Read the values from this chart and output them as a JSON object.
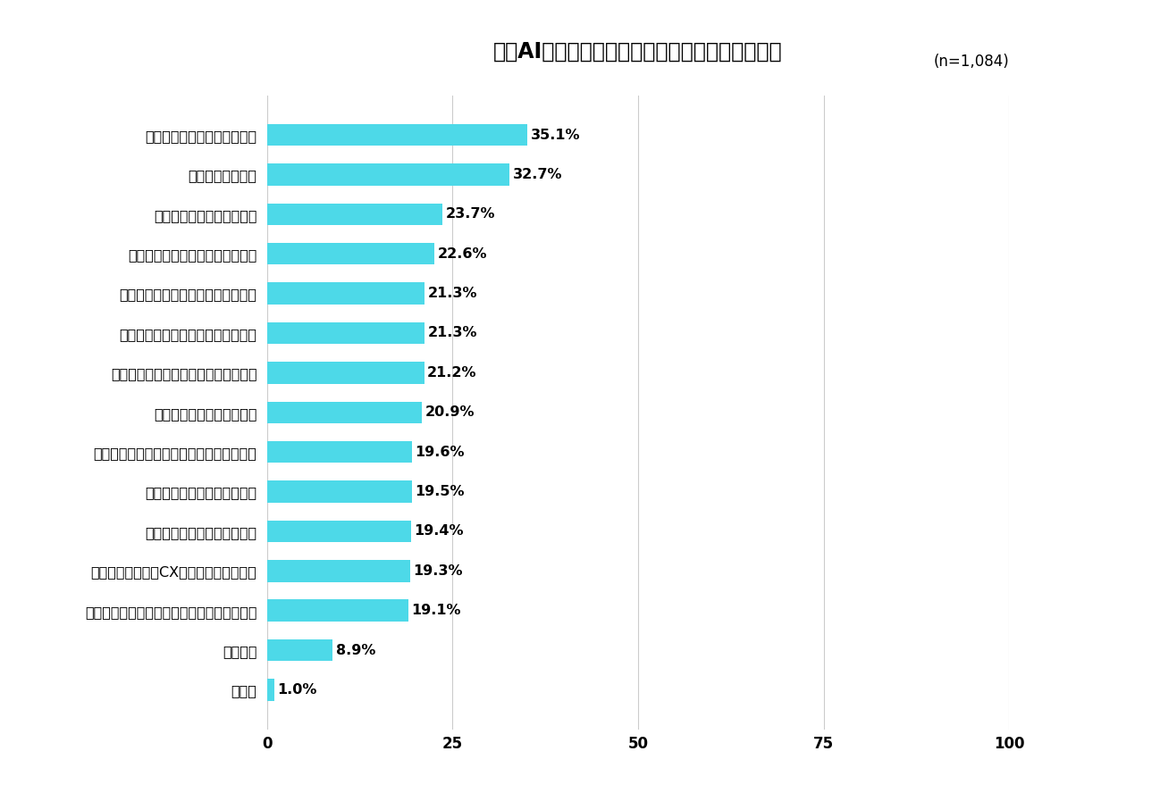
{
  "title": "生成AIの使用経験から得られた成果はなんですか",
  "subtitle": "(n=1,084)",
  "categories": [
    "時間とコストの削減ができた",
    "生産性が上がった",
    "機械翻訳の精度が向上した",
    "データ解析や予測の強化ができた",
    "マーケティング活動の強化ができた",
    "新たなビジネスの創造につながった",
    "顧客のニーズを収集することができた",
    "リスク管理の強化ができた",
    "複数チャネルでの情報提供が可能になった",
    "ブランドイメージが向上した",
    "競合他社との差別化が図れた",
    "顧客対応へ導入しCXの向上につながった",
    "教育・トレーニングに効果的な教材が作れた",
    "特にない",
    "その他"
  ],
  "values": [
    35.1,
    32.7,
    23.7,
    22.6,
    21.3,
    21.3,
    21.2,
    20.9,
    19.6,
    19.5,
    19.4,
    19.3,
    19.1,
    8.9,
    1.0
  ],
  "bar_color": "#4DD9E8",
  "background_color": "#ffffff",
  "xlim": [
    0,
    100
  ],
  "xticks": [
    0,
    25,
    50,
    75,
    100
  ],
  "title_fontsize": 17,
  "subtitle_fontsize": 12,
  "label_fontsize": 11.5,
  "value_fontsize": 11.5,
  "tick_fontsize": 12
}
